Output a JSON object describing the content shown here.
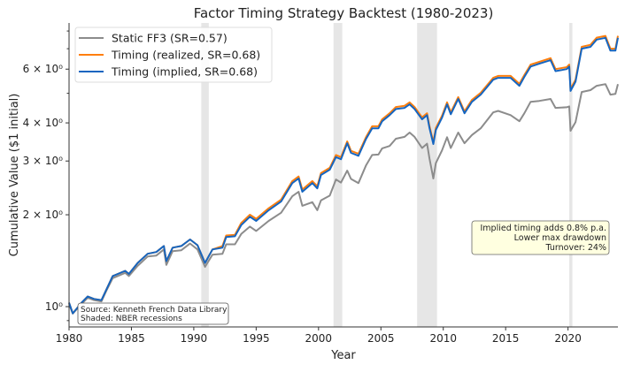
{
  "chart_data": {
    "type": "line",
    "title": "Factor Timing Strategy Backtest (1980-2023)",
    "xlabel": "Year",
    "ylabel": "Cumulative Value ($1 initial)",
    "xlim": [
      1980,
      2024
    ],
    "ylim": [
      0.858,
      8.5
    ],
    "yscale": "log",
    "grid": false,
    "legend_position": "top-left",
    "x_ticks": [
      1980,
      1985,
      1990,
      1995,
      2000,
      2005,
      2010,
      2015,
      2020
    ],
    "x_tick_labels": [
      "1980",
      "1985",
      "1990",
      "1995",
      "2000",
      "2005",
      "2010",
      "2015",
      "2020"
    ],
    "y_ticks": [
      1,
      2,
      3,
      4,
      6
    ],
    "y_tick_labels": [
      "10⁰",
      "2 × 10⁰",
      "3 × 10⁰",
      "4 × 10⁰",
      "6 × 10⁰"
    ],
    "y_minor_ticks": [
      0.9,
      5,
      7,
      8
    ],
    "recessions": [
      [
        1990.6,
        1991.2
      ],
      [
        2001.2,
        2001.9
      ],
      [
        2007.9,
        2009.5
      ],
      [
        2020.1,
        2020.35
      ]
    ],
    "recession_color": "#e6e6e6",
    "x": [
      1980.0,
      1980.3,
      1981.0,
      1981.5,
      1982.0,
      1982.6,
      1983.0,
      1983.5,
      1984.5,
      1984.8,
      1985.5,
      1986.3,
      1987.0,
      1987.6,
      1987.8,
      1988.3,
      1989.0,
      1989.7,
      1990.3,
      1990.9,
      1991.5,
      1992.3,
      1992.6,
      1993.3,
      1993.8,
      1994.5,
      1995.0,
      1996.0,
      1997.0,
      1997.9,
      1998.4,
      1998.7,
      1999.5,
      1999.9,
      2000.2,
      2000.9,
      2001.4,
      2001.8,
      2002.3,
      2002.6,
      2003.2,
      2003.8,
      2004.3,
      2004.8,
      2005.1,
      2005.7,
      2006.2,
      2006.9,
      2007.3,
      2007.7,
      2008.3,
      2008.7,
      2008.9,
      2009.2,
      2009.4,
      2009.9,
      2010.3,
      2010.6,
      2011.2,
      2011.7,
      2012.3,
      2013.0,
      2014.0,
      2014.4,
      2015.4,
      2016.1,
      2016.5,
      2017.0,
      2017.7,
      2018.6,
      2019.0,
      2019.9,
      2020.1,
      2020.2,
      2020.6,
      2021.1,
      2021.8,
      2022.3,
      2023.0,
      2023.4,
      2023.8,
      2024.0
    ],
    "series": [
      {
        "name": "Static FF3 (SR=0.57)",
        "color": "#8c8c8c",
        "values": [
          1.02,
          0.95,
          1.02,
          1.07,
          1.05,
          1.04,
          1.13,
          1.24,
          1.29,
          1.26,
          1.36,
          1.46,
          1.47,
          1.54,
          1.37,
          1.52,
          1.53,
          1.61,
          1.54,
          1.35,
          1.48,
          1.49,
          1.6,
          1.6,
          1.73,
          1.83,
          1.77,
          1.91,
          2.03,
          2.3,
          2.38,
          2.14,
          2.2,
          2.07,
          2.23,
          2.31,
          2.61,
          2.55,
          2.79,
          2.62,
          2.54,
          2.9,
          3.14,
          3.15,
          3.3,
          3.36,
          3.55,
          3.6,
          3.72,
          3.6,
          3.31,
          3.42,
          3.05,
          2.63,
          2.95,
          3.25,
          3.59,
          3.31,
          3.72,
          3.43,
          3.65,
          3.84,
          4.33,
          4.38,
          4.24,
          4.05,
          4.3,
          4.69,
          4.72,
          4.79,
          4.48,
          4.5,
          4.53,
          3.77,
          4.02,
          5.05,
          5.12,
          5.29,
          5.36,
          4.95,
          4.98,
          5.36
        ]
      },
      {
        "name": "Timing (realized, SR=0.68)",
        "color": "#ff7f0e",
        "values": [
          1.03,
          0.95,
          1.03,
          1.08,
          1.06,
          1.05,
          1.14,
          1.26,
          1.31,
          1.28,
          1.39,
          1.49,
          1.51,
          1.58,
          1.41,
          1.56,
          1.58,
          1.66,
          1.59,
          1.39,
          1.54,
          1.58,
          1.71,
          1.72,
          1.88,
          2.0,
          1.94,
          2.1,
          2.24,
          2.58,
          2.67,
          2.42,
          2.58,
          2.48,
          2.74,
          2.85,
          3.14,
          3.09,
          3.48,
          3.24,
          3.17,
          3.59,
          3.9,
          3.9,
          4.11,
          4.3,
          4.51,
          4.55,
          4.67,
          4.51,
          4.17,
          4.3,
          3.9,
          3.46,
          3.85,
          4.22,
          4.67,
          4.33,
          4.86,
          4.36,
          4.76,
          5.02,
          5.62,
          5.7,
          5.7,
          5.37,
          5.74,
          6.21,
          6.34,
          6.52,
          6.0,
          6.09,
          6.21,
          5.17,
          5.54,
          7.1,
          7.21,
          7.61,
          7.71,
          7.0,
          7.0,
          7.71
        ]
      },
      {
        "name": "Timing (implied, SR=0.68)",
        "color": "#1565c0",
        "values": [
          1.03,
          0.95,
          1.03,
          1.08,
          1.06,
          1.05,
          1.14,
          1.26,
          1.31,
          1.28,
          1.39,
          1.49,
          1.51,
          1.58,
          1.41,
          1.56,
          1.58,
          1.66,
          1.59,
          1.39,
          1.54,
          1.56,
          1.69,
          1.7,
          1.85,
          1.97,
          1.91,
          2.07,
          2.21,
          2.54,
          2.63,
          2.38,
          2.54,
          2.44,
          2.7,
          2.81,
          3.09,
          3.04,
          3.43,
          3.19,
          3.12,
          3.54,
          3.84,
          3.84,
          4.05,
          4.24,
          4.44,
          4.48,
          4.6,
          4.44,
          4.11,
          4.24,
          3.84,
          3.41,
          3.79,
          4.16,
          4.6,
          4.27,
          4.79,
          4.3,
          4.69,
          4.95,
          5.54,
          5.62,
          5.62,
          5.29,
          5.66,
          6.12,
          6.25,
          6.42,
          5.91,
          6.0,
          6.12,
          5.09,
          5.46,
          7.0,
          7.1,
          7.5,
          7.6,
          6.9,
          6.9,
          7.6
        ]
      }
    ],
    "annotation_lines": [
      "Implied timing adds 0.8% p.a.",
      "Lower max drawdown",
      "Turnover: 24%"
    ],
    "annotation_bg": "#ffffe0",
    "source_lines": [
      "Source: Kenneth French Data Library",
      "Shaded: NBER recessions"
    ]
  }
}
